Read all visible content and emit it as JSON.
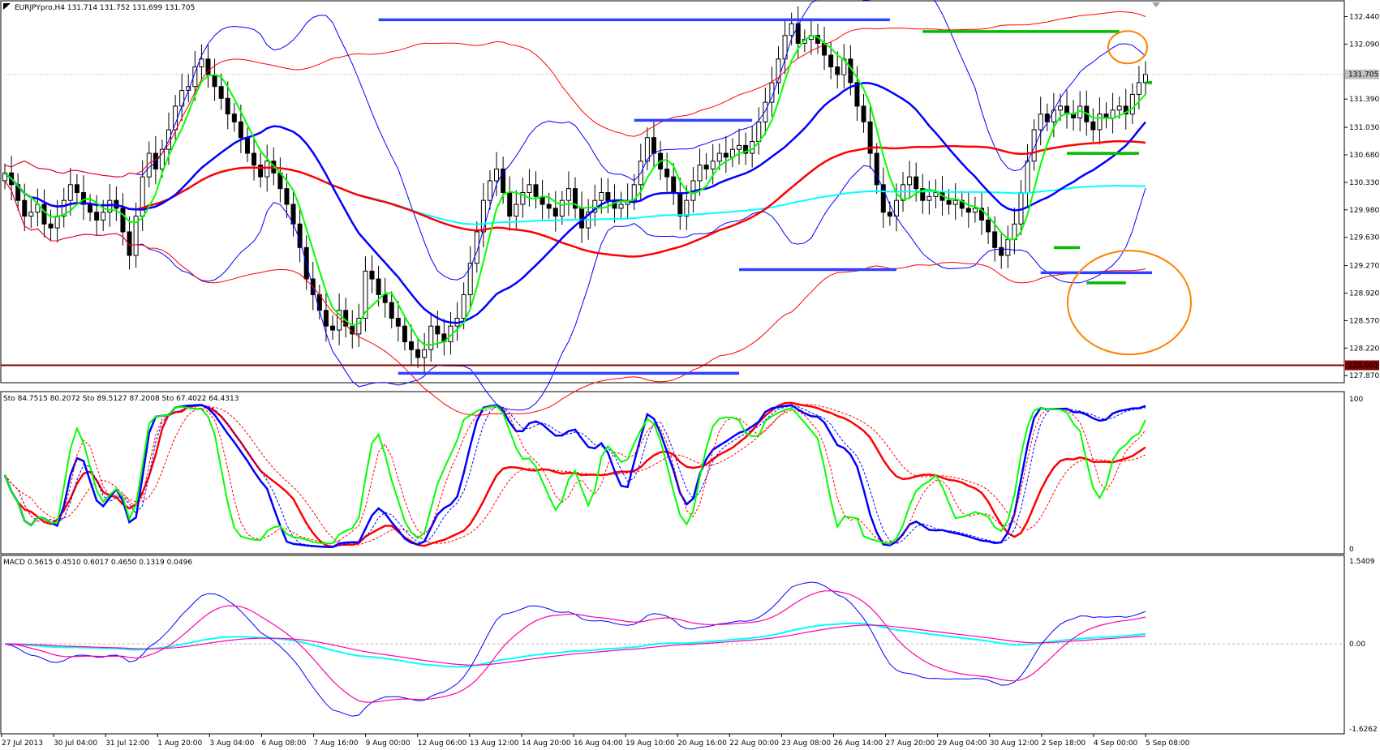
{
  "colors": {
    "bull": "#ffffff",
    "bear": "#000000",
    "grid": "#c0c0c0",
    "frame": "#000000",
    "ma_green": "#00ff00",
    "ma_blue": "#0000ff",
    "ma_red": "#ff0000",
    "ma_cyan": "#00ffff",
    "bb_blue": "#0000ff",
    "bb_red": "#ff0000",
    "orange": "#ff8000",
    "line128": "#800000",
    "level_blue": "#3040ff",
    "level_green": "#00bb00",
    "macd_pink": "#ff00aa"
  },
  "panels": {
    "price": {
      "label": "EURJPYpro,H4  131.714 131.752 131.699 131.705",
      "ticks": [
        "132.440",
        "132.090",
        "131.390",
        "131.030",
        "130.680",
        "130.330",
        "129.980",
        "129.630",
        "129.270",
        "128.920",
        "128.570",
        "128.220",
        "127.870"
      ],
      "last_price_label": "131.705",
      "level_label": "128.001"
    },
    "stoch": {
      "label": "Sto 84.7515 80.2072  Sto 89.5127 87.2008  Sto 67.4022 64.4313",
      "ticks": [
        "100",
        "0"
      ]
    },
    "macd": {
      "label": "MACD 0.5615 0.4510 0.6017 0.4650 0.1319 0.0496",
      "ticks": [
        "1.5409",
        "0.00",
        "-1.6262"
      ]
    }
  },
  "x_axis_labels": [
    "27 Jul 2013",
    "30 Jul 04:00",
    "31 Jul 12:00",
    "1 Aug 20:00",
    "3 Aug 04:00",
    "6 Aug 08:00",
    "7 Aug 16:00",
    "9 Aug 00:00",
    "12 Aug 06:00",
    "13 Aug 12:00",
    "14 Aug 20:00",
    "16 Aug 04:00",
    "19 Aug 10:00",
    "20 Aug 16:00",
    "22 Aug 00:00",
    "23 Aug 08:00",
    "26 Aug 14:00",
    "27 Aug 20:00",
    "29 Aug 04:00",
    "30 Aug 12:00",
    "2 Sep 18:00",
    "4 Sep 00:00",
    "5 Sep 08:00"
  ],
  "chart_data": [
    {
      "type": "candlestick",
      "symbol": "EURJPYpro",
      "timeframe": "H4",
      "ohlc_last": {
        "open": 131.714,
        "high": 131.752,
        "low": 131.699,
        "close": 131.705
      },
      "ylim": [
        127.8,
        132.6
      ],
      "close": [
        130.45,
        130.3,
        130.1,
        129.9,
        129.95,
        130.05,
        129.8,
        129.75,
        129.9,
        130.1,
        130.3,
        130.2,
        130.05,
        129.95,
        129.85,
        129.95,
        130.1,
        130.0,
        129.7,
        129.4,
        129.9,
        130.4,
        130.7,
        130.5,
        130.75,
        131.0,
        131.3,
        131.5,
        131.55,
        131.8,
        131.9,
        131.7,
        131.55,
        131.4,
        131.2,
        131.1,
        130.9,
        130.7,
        130.55,
        130.4,
        130.6,
        130.45,
        130.25,
        130.05,
        129.8,
        129.5,
        129.1,
        128.9,
        128.7,
        128.5,
        128.45,
        128.7,
        128.5,
        128.4,
        128.6,
        129.2,
        129.1,
        128.9,
        128.8,
        128.6,
        128.5,
        128.3,
        128.2,
        128.1,
        128.2,
        128.5,
        128.4,
        128.3,
        128.5,
        128.6,
        128.9,
        129.3,
        129.7,
        130.1,
        130.35,
        130.5,
        130.2,
        129.9,
        130.05,
        130.2,
        130.3,
        130.15,
        130.05,
        130.0,
        129.9,
        130.1,
        130.25,
        130.0,
        129.75,
        129.95,
        130.1,
        130.2,
        130.1,
        130.0,
        130.05,
        130.1,
        130.3,
        130.6,
        130.9,
        130.7,
        130.5,
        130.4,
        130.2,
        129.9,
        130.1,
        130.35,
        130.55,
        130.5,
        130.6,
        130.7,
        130.65,
        130.75,
        130.8,
        130.7,
        130.85,
        131.1,
        131.35,
        131.6,
        131.9,
        132.2,
        132.35,
        132.1,
        132.15,
        132.2,
        132.1,
        131.95,
        131.8,
        131.7,
        131.9,
        131.6,
        131.3,
        131.1,
        130.7,
        130.3,
        129.95,
        129.9,
        130.1,
        130.3,
        130.4,
        130.25,
        130.1,
        130.15,
        130.2,
        130.1,
        130.05,
        130.1,
        130.0,
        129.95,
        130.0,
        129.85,
        129.7,
        129.5,
        129.4,
        129.6,
        129.8,
        130.2,
        130.6,
        131.0,
        131.2,
        131.1,
        131.25,
        131.3,
        131.2,
        131.15,
        131.3,
        131.1,
        131.0,
        131.2,
        131.15,
        131.25,
        131.3,
        131.2,
        131.45,
        131.6,
        131.705
      ]
    },
    {
      "type": "line",
      "indicator": "Stochastic",
      "ylim": [
        0,
        100
      ],
      "series_names": [
        "Sto 84.7515 80.2072",
        "Sto 89.5127 87.2008",
        "Sto 67.4022 64.4313"
      ]
    },
    {
      "type": "line",
      "indicator": "MACD",
      "ylim": [
        -1.6262,
        1.5409
      ],
      "series_names": [
        "MACD 0.5615 0.4510",
        "MACD 0.6017 0.4650",
        "MACD 0.1319 0.0496"
      ]
    }
  ]
}
